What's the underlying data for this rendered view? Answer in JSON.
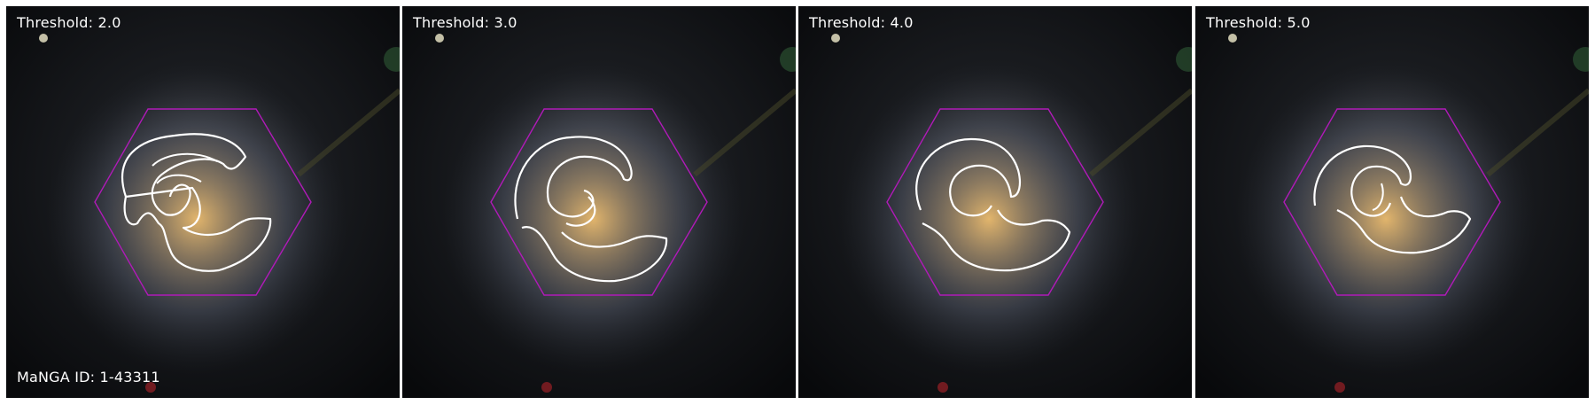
{
  "panels": [
    {
      "label": "Threshold: 2.0"
    },
    {
      "label": "Threshold: 3.0"
    },
    {
      "label": "Threshold: 4.0"
    },
    {
      "label": "Threshold: 5.0"
    }
  ],
  "manga_id_label": "MaNGA ID: 1-43311",
  "colors": {
    "hexagon": "#b01ab8",
    "contour": "#ffffff",
    "background": "#0b0d10",
    "core": "#d9b070"
  }
}
